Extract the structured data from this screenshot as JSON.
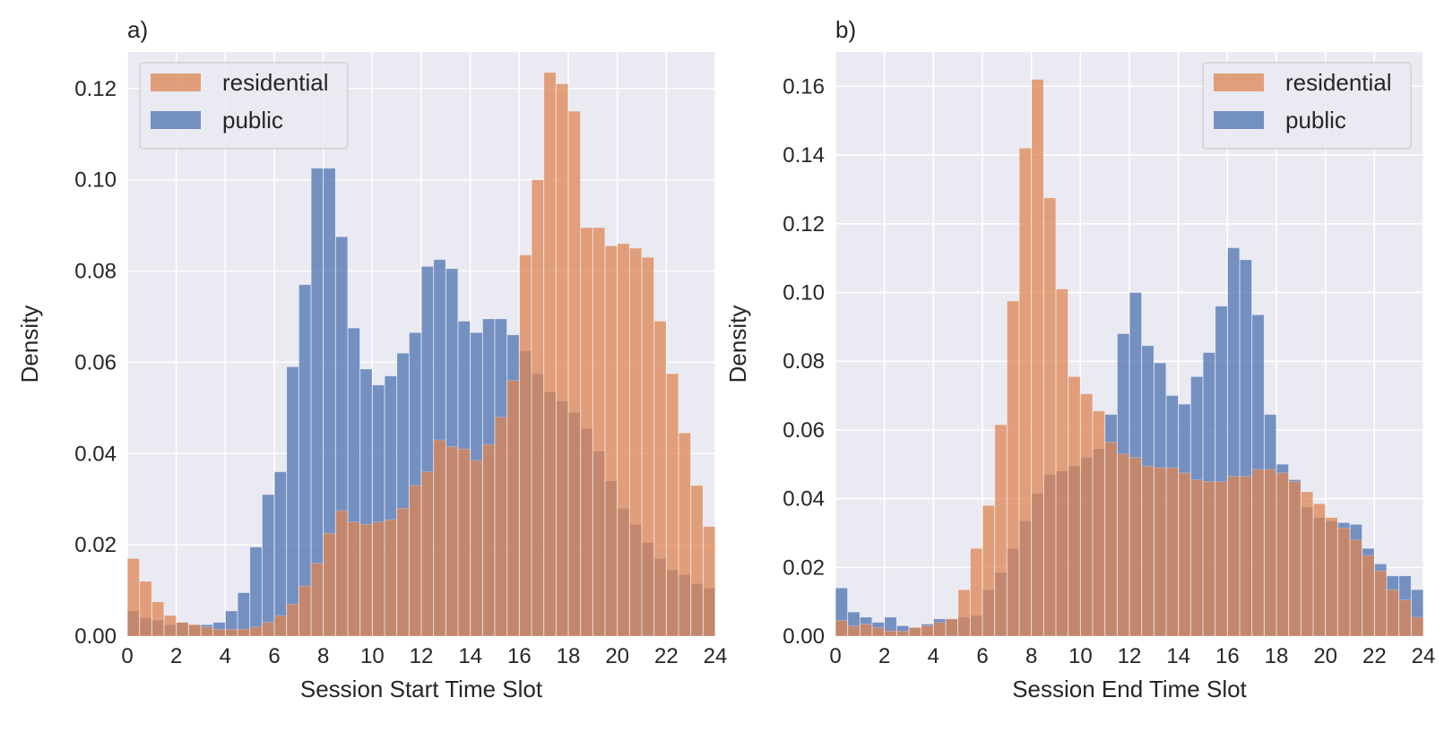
{
  "colors": {
    "residential": "#dd8452",
    "public": "#4c72b0",
    "plot_background": "#eaeaf2",
    "grid": "#ffffff"
  },
  "chart_data": [
    {
      "type": "bar",
      "panel_label": "a)",
      "xlabel": "Session Start Time Slot",
      "ylabel": "Density",
      "xlim": [
        0,
        24
      ],
      "ylim": [
        0,
        0.128
      ],
      "xticks": [
        0,
        2,
        4,
        6,
        8,
        10,
        12,
        14,
        16,
        18,
        20,
        22,
        24
      ],
      "xtick_labels": [
        "0",
        "2",
        "4",
        "6",
        "8",
        "10",
        "12",
        "14",
        "16",
        "18",
        "20",
        "22",
        "24"
      ],
      "yticks": [
        0,
        0.02,
        0.04,
        0.06,
        0.08,
        0.1,
        0.12
      ],
      "ytick_labels": [
        "0.00",
        "0.02",
        "0.04",
        "0.06",
        "0.08",
        "0.10",
        "0.12"
      ],
      "grid": true,
      "legend_position": "top-left",
      "bin_width": 0.5,
      "bin_starts": [
        0,
        0.5,
        1,
        1.5,
        2,
        2.5,
        3,
        3.5,
        4,
        4.5,
        5,
        5.5,
        6,
        6.5,
        7,
        7.5,
        8,
        8.5,
        9,
        9.5,
        10,
        10.5,
        11,
        11.5,
        12,
        12.5,
        13,
        13.5,
        14,
        14.5,
        15,
        15.5,
        16,
        16.5,
        17,
        17.5,
        18,
        18.5,
        19,
        19.5,
        20,
        20.5,
        21,
        21.5,
        22,
        22.5,
        23,
        23.5
      ],
      "series": [
        {
          "name": "residential",
          "values": [
            0.017,
            0.012,
            0.0075,
            0.0045,
            0.003,
            0.0025,
            0.002,
            0.0015,
            0.0015,
            0.0015,
            0.002,
            0.003,
            0.0045,
            0.007,
            0.011,
            0.016,
            0.0225,
            0.0275,
            0.025,
            0.0245,
            0.025,
            0.0255,
            0.028,
            0.033,
            0.036,
            0.043,
            0.0415,
            0.041,
            0.0385,
            0.042,
            0.048,
            0.056,
            0.0835,
            0.1,
            0.1235,
            0.121,
            0.115,
            0.0895,
            0.0895,
            0.0855,
            0.086,
            0.085,
            0.083,
            0.069,
            0.0575,
            0.0445,
            0.033,
            0.024
          ]
        },
        {
          "name": "public",
          "values": [
            0.0055,
            0.004,
            0.0035,
            0.0025,
            0.003,
            0.0025,
            0.0025,
            0.003,
            0.0055,
            0.0095,
            0.0195,
            0.031,
            0.036,
            0.059,
            0.077,
            0.1025,
            0.1025,
            0.0875,
            0.0675,
            0.0585,
            0.055,
            0.057,
            0.062,
            0.0665,
            0.081,
            0.0825,
            0.0805,
            0.069,
            0.0665,
            0.0695,
            0.0695,
            0.066,
            0.0625,
            0.0575,
            0.0535,
            0.0515,
            0.049,
            0.0455,
            0.0405,
            0.034,
            0.028,
            0.0245,
            0.0205,
            0.017,
            0.0145,
            0.0135,
            0.0115,
            0.0105
          ]
        }
      ]
    },
    {
      "type": "bar",
      "panel_label": "b)",
      "xlabel": "Session End Time Slot",
      "ylabel": "Density",
      "xlim": [
        0,
        24
      ],
      "ylim": [
        0,
        0.17
      ],
      "xticks": [
        0,
        2,
        4,
        6,
        8,
        10,
        12,
        14,
        16,
        18,
        20,
        22,
        24
      ],
      "xtick_labels": [
        "0",
        "2",
        "4",
        "6",
        "8",
        "10",
        "12",
        "14",
        "16",
        "18",
        "20",
        "22",
        "24"
      ],
      "yticks": [
        0,
        0.02,
        0.04,
        0.06,
        0.08,
        0.1,
        0.12,
        0.14,
        0.16
      ],
      "ytick_labels": [
        "0.00",
        "0.02",
        "0.04",
        "0.06",
        "0.08",
        "0.10",
        "0.12",
        "0.14",
        "0.16"
      ],
      "grid": true,
      "legend_position": "top-right",
      "bin_width": 0.5,
      "bin_starts": [
        0,
        0.5,
        1,
        1.5,
        2,
        2.5,
        3,
        3.5,
        4,
        4.5,
        5,
        5.5,
        6,
        6.5,
        7,
        7.5,
        8,
        8.5,
        9,
        9.5,
        10,
        10.5,
        11,
        11.5,
        12,
        12.5,
        13,
        13.5,
        14,
        14.5,
        15,
        15.5,
        16,
        16.5,
        17,
        17.5,
        18,
        18.5,
        19,
        19.5,
        20,
        20.5,
        21,
        21.5,
        22,
        22.5,
        23,
        23.5
      ],
      "series": [
        {
          "name": "residential",
          "values": [
            0.0045,
            0.003,
            0.0035,
            0.0025,
            0.0015,
            0.0015,
            0.0025,
            0.003,
            0.004,
            0.005,
            0.0135,
            0.0255,
            0.038,
            0.0615,
            0.0975,
            0.142,
            0.162,
            0.1275,
            0.101,
            0.0755,
            0.0705,
            0.0655,
            0.0565,
            0.053,
            0.052,
            0.0495,
            0.049,
            0.049,
            0.0475,
            0.0455,
            0.045,
            0.045,
            0.0465,
            0.0465,
            0.0485,
            0.0485,
            0.0475,
            0.045,
            0.042,
            0.0385,
            0.0345,
            0.0315,
            0.028,
            0.0235,
            0.019,
            0.0135,
            0.0105,
            0.0055
          ]
        },
        {
          "name": "public",
          "values": [
            0.014,
            0.007,
            0.0055,
            0.004,
            0.0055,
            0.003,
            0.0025,
            0.0035,
            0.005,
            0.005,
            0.0055,
            0.006,
            0.0135,
            0.0185,
            0.0255,
            0.0335,
            0.0415,
            0.047,
            0.048,
            0.0495,
            0.052,
            0.0545,
            0.0645,
            0.088,
            0.1,
            0.0845,
            0.0795,
            0.07,
            0.0675,
            0.0755,
            0.0825,
            0.096,
            0.113,
            0.1095,
            0.0935,
            0.0645,
            0.05,
            0.0455,
            0.0375,
            0.0345,
            0.0335,
            0.033,
            0.0325,
            0.0255,
            0.021,
            0.0175,
            0.0175,
            0.0135
          ]
        }
      ]
    }
  ]
}
